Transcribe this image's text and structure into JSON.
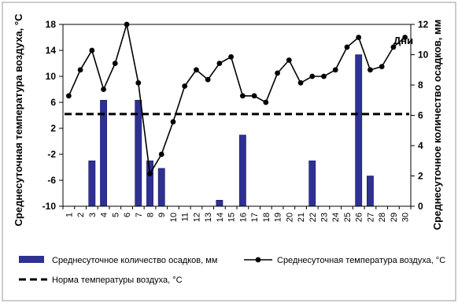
{
  "chart_data": {
    "type": "bar+line",
    "left_axis": {
      "label": "Среднесуточная температура воздуха, °С",
      "range": [
        -10,
        18
      ],
      "ticks": [
        -10,
        -6,
        -2,
        2,
        6,
        10,
        14,
        18
      ]
    },
    "right_axis": {
      "label": "Среднесуточное количество осадков, мм",
      "range": [
        0,
        12
      ],
      "ticks": [
        0,
        2,
        4,
        6,
        8,
        10,
        12
      ]
    },
    "x_axis": {
      "label": "Дни",
      "categories": [
        "1",
        "2",
        "3",
        "4",
        "5",
        "6",
        "7",
        "8",
        "9",
        "10",
        "11",
        "12",
        "13",
        "14",
        "15",
        "16",
        "17",
        "18",
        "19",
        "20",
        "21",
        "22",
        "23",
        "24",
        "25",
        "26",
        "27",
        "28",
        "29",
        "30"
      ]
    },
    "precipitation": {
      "name": "Среднесуточное количество осадков, мм",
      "color": "#2e3192",
      "axis": "right",
      "values": [
        0,
        0,
        3,
        7,
        0,
        0,
        7,
        3,
        2.5,
        0,
        0,
        0,
        0,
        0.4,
        0,
        4.7,
        0,
        0,
        0,
        0,
        0,
        3,
        0,
        0,
        0,
        10,
        2,
        0,
        0,
        0
      ]
    },
    "temperature": {
      "name": "Среднесуточная температура воздуха, °С",
      "color": "#000000",
      "axis": "left",
      "values": [
        7,
        11,
        14,
        8,
        12,
        18,
        9,
        -5,
        -2,
        3,
        8.5,
        11,
        9.5,
        12,
        13,
        7,
        7,
        6,
        10.5,
        12.5,
        9,
        10,
        10,
        11,
        14.5,
        16,
        11,
        11.5,
        14.5,
        16
      ]
    },
    "norm": {
      "name": "Норма температуры воздуха, °С",
      "value": 4.2,
      "axis": "left",
      "style": "dashed"
    },
    "legend_position": "bottom",
    "grid": false
  }
}
